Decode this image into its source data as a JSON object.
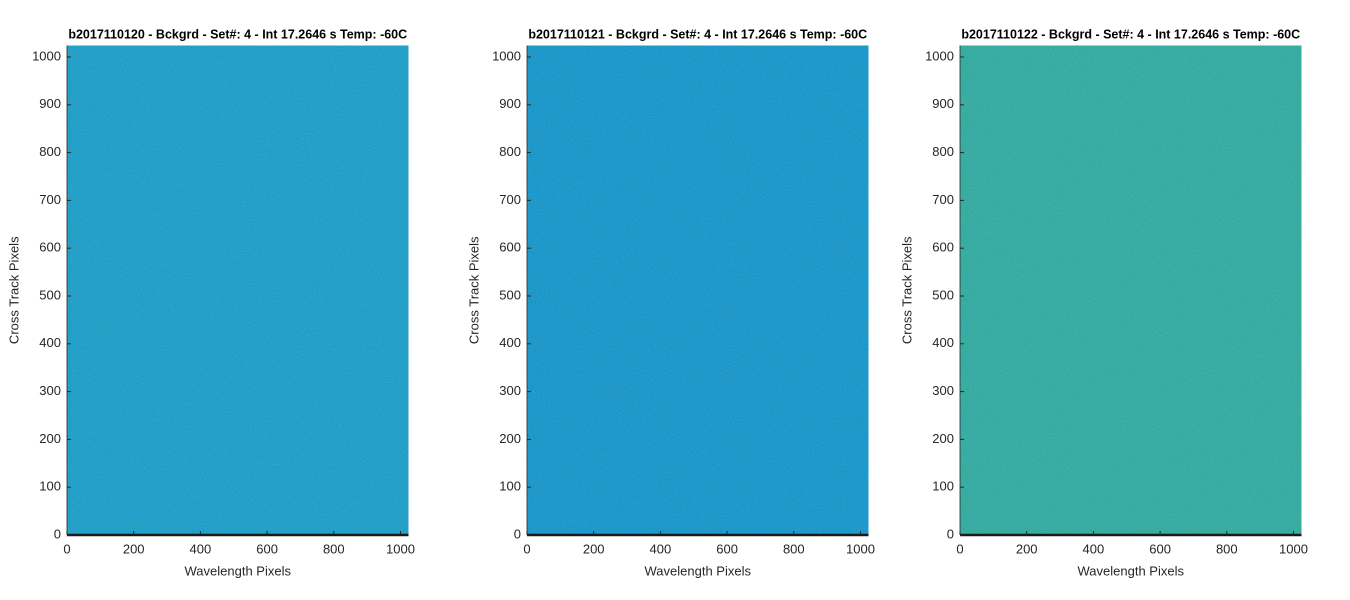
{
  "chart_data": [
    {
      "type": "image",
      "title": "b2017110120 - Bckgrd - Set#: 4 - Int 17.2646 s Temp: -60C",
      "x_label": "Wavelength Pixels",
      "y_label": "Cross Track Pixels",
      "color": "#1f9ec9",
      "xlim": [
        0,
        1024
      ],
      "ylim": [
        0,
        1024
      ],
      "xticks": [
        0,
        200,
        400,
        600,
        800,
        1000
      ],
      "yticks": [
        0,
        100,
        200,
        300,
        400,
        500,
        600,
        700,
        800,
        900,
        1000
      ]
    },
    {
      "type": "image",
      "title": "b2017110121 - Bckgrd - Set#: 4 - Int 17.2646 s Temp: -60C",
      "x_label": "Wavelength Pixels",
      "y_label": "Cross Track Pixels",
      "color": "#1996cb",
      "xlim": [
        0,
        1024
      ],
      "ylim": [
        0,
        1024
      ],
      "xticks": [
        0,
        200,
        400,
        600,
        800,
        1000
      ],
      "yticks": [
        0,
        100,
        200,
        300,
        400,
        500,
        600,
        700,
        800,
        900,
        1000
      ]
    },
    {
      "type": "image",
      "title": "b2017110122 - Bckgrd - Set#: 4 - Int 17.2646 s Temp: -60C",
      "x_label": "Wavelength Pixels",
      "y_label": "Cross Track Pixels",
      "color": "#34aaa3",
      "xlim": [
        0,
        1024
      ],
      "ylim": [
        0,
        1024
      ],
      "xticks": [
        0,
        200,
        400,
        600,
        800,
        1000
      ],
      "yticks": [
        0,
        100,
        200,
        300,
        400,
        500,
        600,
        700,
        800,
        900,
        1000
      ]
    }
  ]
}
